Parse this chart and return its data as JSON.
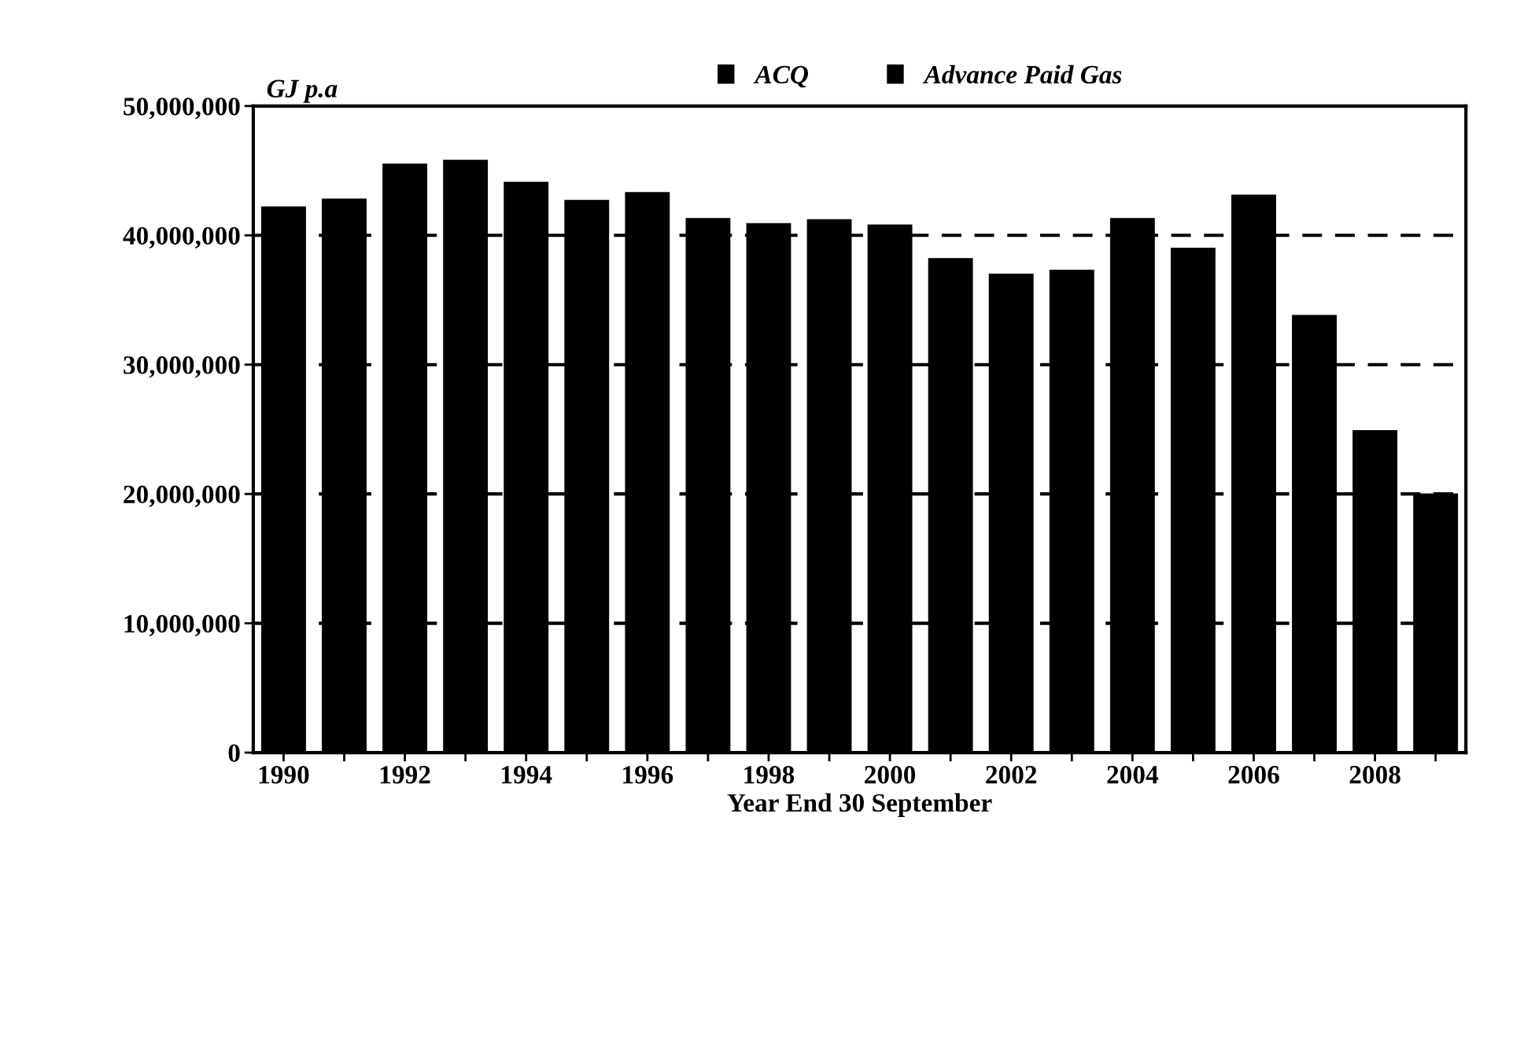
{
  "chart_data": {
    "type": "bar",
    "stacked": true,
    "xlabel": "Year End 30 September",
    "ylabel": "GJ p.a",
    "categories": [
      "1990",
      null,
      "1992",
      null,
      "1994",
      null,
      "1996",
      null,
      "1998",
      null,
      "2000",
      null,
      "2002",
      null,
      "2004",
      null,
      "2006",
      null,
      "2008",
      null
    ],
    "series": [
      {
        "name": "ACQ",
        "color": "#000000",
        "values": [
          42200000,
          42800000,
          45500000,
          45800000,
          44100000,
          42700000,
          43300000,
          41300000,
          40900000,
          41200000,
          40800000,
          38200000,
          37000000,
          37300000,
          41300000,
          39000000,
          43100000,
          33800000,
          24900000,
          20000000
        ]
      },
      {
        "name": "Advance Paid Gas",
        "color": "#000000",
        "values": [
          null,
          null,
          null,
          null,
          null,
          null,
          null,
          null,
          null,
          null,
          null,
          null,
          null,
          null,
          null,
          null,
          null,
          null,
          null,
          null
        ]
      }
    ],
    "ylim": [
      0,
      50000000
    ],
    "yticks": [
      {
        "value": 0,
        "label": "0"
      },
      {
        "value": 10000000,
        "label": "10,000,000"
      },
      {
        "value": 20000000,
        "label": "20,000,000"
      },
      {
        "value": 30000000,
        "label": "30,000,000"
      },
      {
        "value": 40000000,
        "label": "40,000,000"
      },
      {
        "value": 50000000,
        "label": "50,000,000"
      }
    ],
    "grid": "y",
    "line_style": "dashed",
    "legend": "top"
  }
}
